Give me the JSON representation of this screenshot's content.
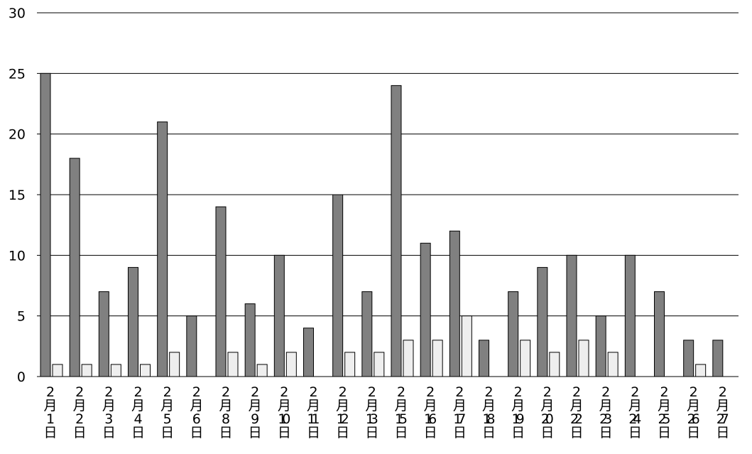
{
  "chart_data": {
    "type": "bar",
    "categories": [
      "2月1日",
      "2月2日",
      "2月3日",
      "2月4日",
      "2月5日",
      "2月6日",
      "2月8日",
      "2月9日",
      "2月10日",
      "2月11日",
      "2月12日",
      "2月13日",
      "2月15日",
      "2月16日",
      "2月17日",
      "2月18日",
      "2月19日",
      "2月20日",
      "2月22日",
      "2月23日",
      "2月24日",
      "2月25日",
      "2月26日",
      "2月27日"
    ],
    "series": [
      {
        "color": "#808080",
        "values": [
          25,
          18,
          7,
          9,
          21,
          5,
          14,
          6,
          10,
          4,
          15,
          7,
          24,
          11,
          12,
          3,
          7,
          9,
          10,
          5,
          10,
          7,
          3,
          3
        ]
      },
      {
        "color": "#eeeeee",
        "values": [
          1,
          1,
          1,
          1,
          2,
          null,
          2,
          1,
          2,
          null,
          2,
          2,
          3,
          3,
          5,
          null,
          3,
          2,
          3,
          2,
          null,
          null,
          1,
          null
        ]
      }
    ],
    "ylim": [
      0,
      30
    ],
    "yticks": [
      0,
      5,
      10,
      15,
      20,
      25,
      30
    ],
    "grid": true
  }
}
